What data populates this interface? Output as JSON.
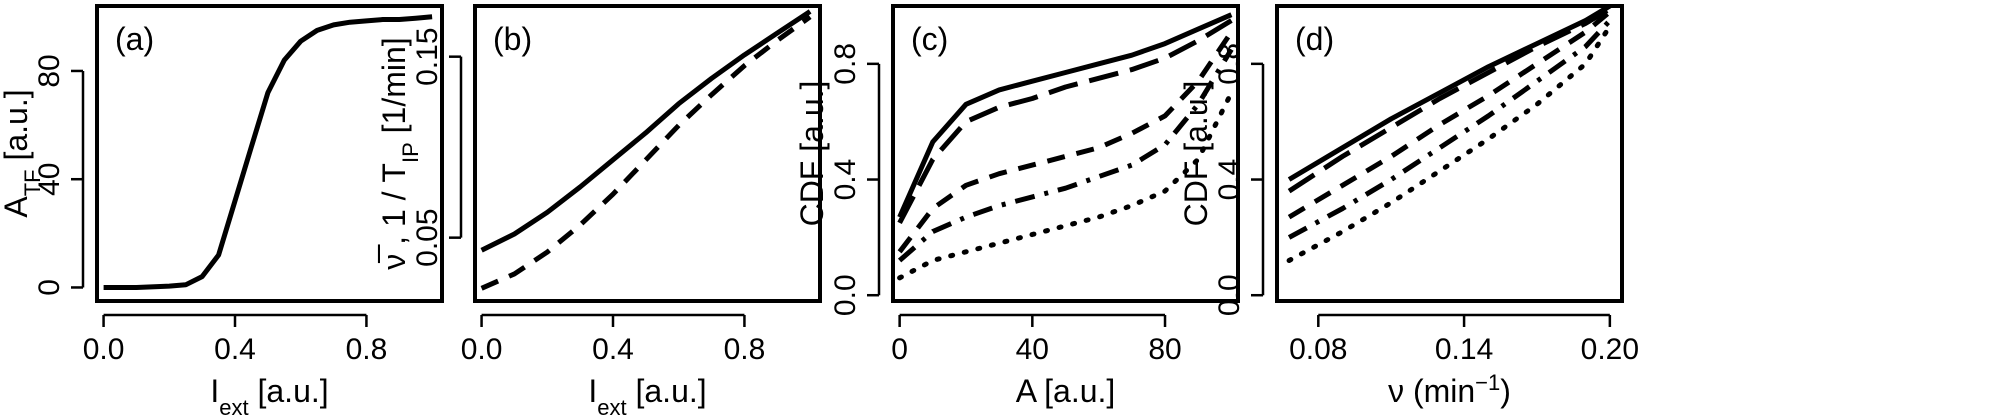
{
  "chart_data": [
    {
      "panel": "(a)",
      "type": "line",
      "xlabel": "I",
      "xlabel_sub": "ext",
      "xlabel_rest": " [a.u.]",
      "ylabel": "A",
      "ylabel_sub": "TF",
      "ylabel_rest": " [a.u.]",
      "xlim": [
        -0.02,
        1.03
      ],
      "ylim": [
        -5,
        104
      ],
      "xticks": [
        0.0,
        0.4,
        0.8
      ],
      "xtick_labels": [
        "0.0",
        "0.4",
        "0.8"
      ],
      "yticks": [
        0,
        40,
        80
      ],
      "ytick_labels": [
        "0",
        "40",
        "80"
      ],
      "series": [
        {
          "style": "solid",
          "x": [
            0.0,
            0.1,
            0.2,
            0.25,
            0.3,
            0.35,
            0.4,
            0.45,
            0.5,
            0.55,
            0.6,
            0.65,
            0.7,
            0.75,
            0.8,
            0.85,
            0.9,
            0.95,
            1.0
          ],
          "values": [
            0,
            0,
            0.5,
            1,
            4,
            12,
            32,
            52,
            72,
            84,
            91,
            95,
            97,
            98,
            98.5,
            99,
            99,
            99.5,
            100
          ]
        }
      ]
    },
    {
      "panel": "(b)",
      "type": "line",
      "xlabel": "I",
      "xlabel_sub": "ext",
      "xlabel_rest": " [a.u.]",
      "ylabel": "ν̅ , 1 / T",
      "ylabel_sub": "IP",
      "ylabel_rest": " [1/min]",
      "xlim": [
        -0.02,
        1.03
      ],
      "ylim": [
        0.015,
        0.178
      ],
      "xticks": [
        0.0,
        0.4,
        0.8
      ],
      "xtick_labels": [
        "0.0",
        "0.4",
        "0.8"
      ],
      "yticks": [
        0.05,
        0.15
      ],
      "ytick_labels": [
        "0.05",
        "0.15"
      ],
      "series": [
        {
          "style": "solid",
          "x": [
            0.0,
            0.1,
            0.2,
            0.3,
            0.4,
            0.5,
            0.6,
            0.7,
            0.8,
            0.9,
            1.0
          ],
          "values": [
            0.043,
            0.052,
            0.064,
            0.078,
            0.093,
            0.108,
            0.124,
            0.138,
            0.151,
            0.163,
            0.175
          ]
        },
        {
          "style": "dashed",
          "x": [
            0.0,
            0.1,
            0.2,
            0.3,
            0.4,
            0.5,
            0.6,
            0.7,
            0.8,
            0.9,
            1.0
          ],
          "values": [
            0.022,
            0.03,
            0.042,
            0.057,
            0.074,
            0.093,
            0.112,
            0.129,
            0.145,
            0.159,
            0.172
          ]
        }
      ]
    },
    {
      "panel": "(c)",
      "type": "line",
      "xlabel": "A [a.u.]",
      "ylabel": "CDF [a.u.]",
      "xlim": [
        -2,
        102
      ],
      "ylim": [
        -0.02,
        1.0
      ],
      "xticks": [
        0,
        40,
        80
      ],
      "xtick_labels": [
        "0",
        "40",
        "80"
      ],
      "yticks": [
        0.0,
        0.4,
        0.8
      ],
      "ytick_labels": [
        "0.0",
        "0.4",
        "0.8"
      ],
      "series": [
        {
          "style": "solid",
          "x": [
            0,
            10,
            20,
            30,
            40,
            50,
            60,
            70,
            80,
            90,
            100
          ],
          "values": [
            0.27,
            0.53,
            0.66,
            0.71,
            0.74,
            0.77,
            0.8,
            0.83,
            0.87,
            0.92,
            0.97
          ]
        },
        {
          "style": "longdash",
          "x": [
            0,
            10,
            20,
            30,
            40,
            50,
            60,
            70,
            80,
            90,
            100
          ],
          "values": [
            0.25,
            0.47,
            0.6,
            0.65,
            0.68,
            0.72,
            0.75,
            0.78,
            0.82,
            0.88,
            0.95
          ]
        },
        {
          "style": "dashed",
          "x": [
            0,
            10,
            20,
            30,
            40,
            50,
            60,
            70,
            80,
            90,
            100
          ],
          "values": [
            0.15,
            0.3,
            0.38,
            0.42,
            0.45,
            0.48,
            0.51,
            0.56,
            0.62,
            0.74,
            0.91
          ]
        },
        {
          "style": "dashdot",
          "x": [
            0,
            10,
            20,
            30,
            40,
            50,
            60,
            70,
            80,
            90,
            100
          ],
          "values": [
            0.12,
            0.22,
            0.27,
            0.31,
            0.34,
            0.37,
            0.41,
            0.45,
            0.52,
            0.66,
            0.85
          ]
        },
        {
          "style": "dotted",
          "x": [
            0,
            10,
            20,
            30,
            40,
            50,
            60,
            70,
            80,
            90,
            100
          ],
          "values": [
            0.06,
            0.12,
            0.15,
            0.18,
            0.21,
            0.24,
            0.27,
            0.31,
            0.36,
            0.47,
            0.7
          ]
        }
      ]
    },
    {
      "panel": "(d)",
      "type": "line",
      "xlabel": "ν (min",
      "xlabel_sup": "−1",
      "xlabel_rest": ")",
      "ylabel": "CDF [a.u.]",
      "xlim": [
        0.063,
        0.205
      ],
      "ylim": [
        -0.02,
        1.0
      ],
      "xticks": [
        0.08,
        0.14,
        0.2
      ],
      "xtick_labels": [
        "0.08",
        "0.14",
        "0.20"
      ],
      "yticks": [
        0.0,
        0.4,
        0.8
      ],
      "ytick_labels": [
        "0.0",
        "0.4",
        "0.8"
      ],
      "series": [
        {
          "style": "solid",
          "x": [
            0.068,
            0.09,
            0.11,
            0.13,
            0.15,
            0.17,
            0.19,
            0.2
          ],
          "values": [
            0.4,
            0.51,
            0.61,
            0.7,
            0.79,
            0.87,
            0.95,
            1.0
          ]
        },
        {
          "style": "longdash",
          "x": [
            0.068,
            0.09,
            0.11,
            0.13,
            0.15,
            0.17,
            0.19,
            0.2
          ],
          "values": [
            0.36,
            0.48,
            0.58,
            0.68,
            0.77,
            0.86,
            0.94,
            0.99
          ]
        },
        {
          "style": "dashed",
          "x": [
            0.068,
            0.09,
            0.11,
            0.13,
            0.15,
            0.17,
            0.19,
            0.2
          ],
          "values": [
            0.27,
            0.38,
            0.48,
            0.59,
            0.69,
            0.8,
            0.91,
            0.98
          ]
        },
        {
          "style": "dashdot",
          "x": [
            0.068,
            0.09,
            0.11,
            0.13,
            0.15,
            0.17,
            0.19,
            0.2
          ],
          "values": [
            0.2,
            0.3,
            0.4,
            0.51,
            0.62,
            0.74,
            0.86,
            0.95
          ]
        },
        {
          "style": "dotted",
          "x": [
            0.068,
            0.09,
            0.11,
            0.13,
            0.15,
            0.17,
            0.19,
            0.2
          ],
          "values": [
            0.12,
            0.22,
            0.32,
            0.43,
            0.54,
            0.66,
            0.8,
            0.93
          ]
        }
      ]
    }
  ]
}
